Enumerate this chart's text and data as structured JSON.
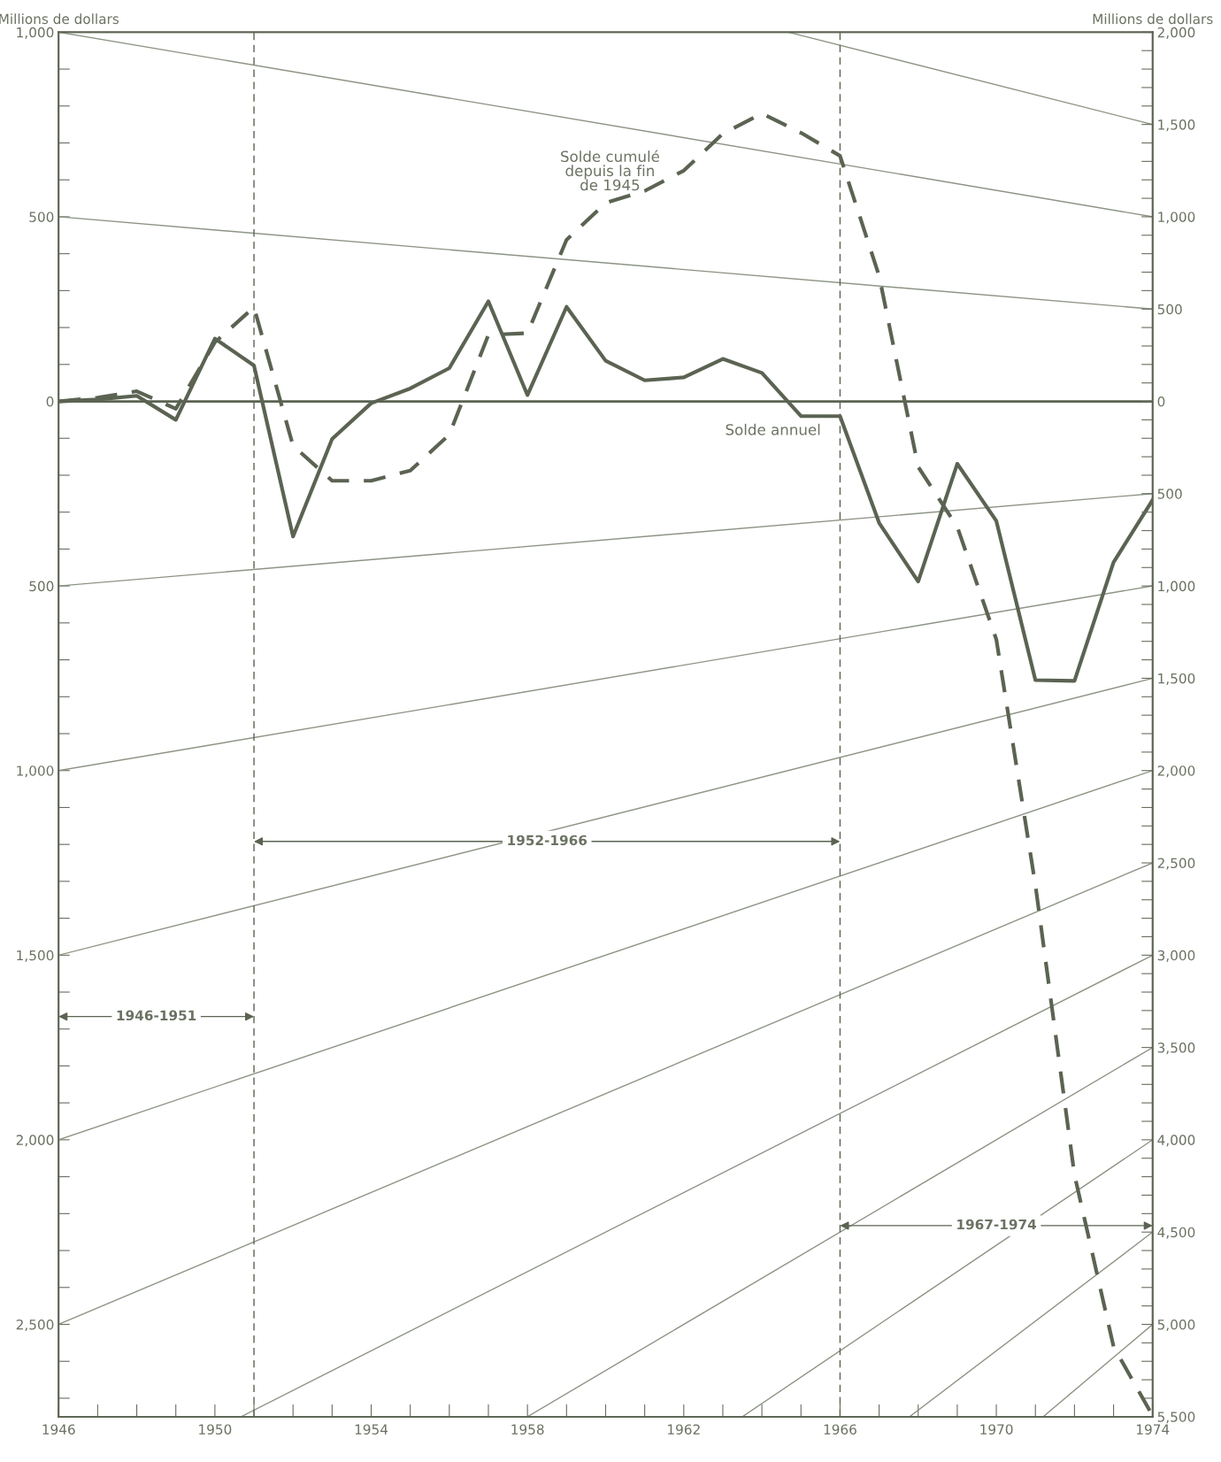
{
  "chart_data": {
    "type": "line",
    "ylabel": "Millions de dollars",
    "y2label": "Millions de dollars",
    "x": [
      1946,
      1947,
      1948,
      1949,
      1950,
      1951,
      1952,
      1953,
      1954,
      1955,
      1956,
      1957,
      1958,
      1959,
      1960,
      1961,
      1962,
      1963,
      1964,
      1965,
      1966,
      1967,
      1968,
      1969,
      1970,
      1971,
      1972,
      1973,
      1974
    ],
    "series": [
      {
        "color": "#8c9484",
        "x": [
          1946,
          1974
        ],
        "values": [
          1000,
          500
        ]
      },
      {
        "color": "#8c9484",
        "x": [
          1964.67,
          1974
        ],
        "values": [
          1000,
          750
        ]
      },
      {
        "color": "#8c9484",
        "x": [
          1946,
          1974
        ],
        "values": [
          500,
          250
        ]
      },
      {
        "color": "#8c9484",
        "x": [
          1946,
          1974
        ],
        "values": [
          -500,
          -250
        ]
      },
      {
        "color": "#8c9484",
        "x": [
          1946,
          1974
        ],
        "values": [
          -1000,
          -500
        ]
      },
      {
        "color": "#8c9484",
        "x": [
          1946,
          1974
        ],
        "values": [
          -1500,
          -750
        ]
      },
      {
        "color": "#8c9484",
        "x": [
          1946,
          1974
        ],
        "values": [
          -2000,
          -1000
        ]
      },
      {
        "color": "#8c9484",
        "x": [
          1946,
          1974
        ],
        "values": [
          -2500,
          -1250
        ]
      },
      {
        "color": "#8c9484",
        "x": [
          1950.67,
          1974
        ],
        "values": [
          -2750,
          -1500
        ]
      },
      {
        "color": "#8c9484",
        "x": [
          1958.0,
          1974
        ],
        "values": [
          -2750,
          -1750
        ]
      },
      {
        "color": "#8c9484",
        "x": [
          1963.5,
          1974
        ],
        "values": [
          -2750,
          -2000
        ]
      },
      {
        "color": "#8c9484",
        "x": [
          1967.78,
          1974
        ],
        "values": [
          -2750,
          -2250
        ]
      },
      {
        "color": "#8c9484",
        "x": [
          1971.2,
          1974
        ],
        "values": [
          -2750,
          -2500
        ]
      },
      {
        "color": "#5b6352",
        "line_style": "solid",
        "values": [
          0,
          5,
          15,
          -50,
          170,
          97,
          -366,
          -102,
          -5,
          35,
          90,
          271,
          17,
          256,
          110,
          57,
          65,
          115,
          77,
          -40,
          -40,
          -329,
          -488,
          -169,
          -324,
          -755,
          -757,
          -436,
          -267
        ]
      },
      {
        "color": "#5b6352",
        "line_style": "dashed",
        "axis": "y2",
        "values": [
          0,
          20,
          55,
          -40,
          320,
          510,
          -240,
          -430,
          -430,
          -375,
          -180,
          360,
          370,
          875,
          1075,
          1140,
          1250,
          1450,
          1560,
          1455,
          1330,
          680,
          -355,
          -680,
          -1290,
          -2620,
          -4190,
          -5120,
          -5495
        ]
      }
    ],
    "xlim": [
      1946,
      1974
    ],
    "xticks": [
      1946,
      {
        "value": 1947,
        "label": null
      },
      {
        "value": 1948,
        "label": null
      },
      {
        "value": 1949,
        "label": null
      },
      1950,
      {
        "value": 1951,
        "label": null
      },
      {
        "value": 1952,
        "label": null
      },
      {
        "value": 1953,
        "label": null
      },
      1954,
      {
        "value": 1955,
        "label": null
      },
      {
        "value": 1956,
        "label": null
      },
      {
        "value": 1957,
        "label": null
      },
      1958,
      {
        "value": 1959,
        "label": null
      },
      {
        "value": 1960,
        "label": null
      },
      {
        "value": 1961,
        "label": null
      },
      1962,
      {
        "value": 1963,
        "label": null
      },
      {
        "value": 1964,
        "label": null
      },
      {
        "value": 1965,
        "label": null
      },
      1966,
      {
        "value": 1967,
        "label": null
      },
      {
        "value": 1968,
        "label": null
      },
      {
        "value": 1969,
        "label": null
      },
      1970,
      {
        "value": 1971,
        "label": null
      },
      {
        "value": 1972,
        "label": null
      },
      {
        "value": 1973,
        "label": null
      },
      1974
    ],
    "ylim": [
      -2750,
      1000
    ],
    "yticks": [
      {
        "value": 1000,
        "label": "1,000"
      },
      {
        "value": 900,
        "label": null
      },
      {
        "value": 800,
        "label": null
      },
      {
        "value": 700,
        "label": null
      },
      {
        "value": 600,
        "label": null
      },
      500,
      {
        "value": 400,
        "label": null
      },
      {
        "value": 300,
        "label": null
      },
      {
        "value": 200,
        "label": null
      },
      {
        "value": 100,
        "label": null
      },
      0,
      {
        "value": -100,
        "label": null
      },
      {
        "value": -200,
        "label": null
      },
      {
        "value": -300,
        "label": null
      },
      {
        "value": -400,
        "label": null
      },
      {
        "value": -500,
        "label": "500"
      },
      {
        "value": -600,
        "label": null
      },
      {
        "value": -700,
        "label": null
      },
      {
        "value": -800,
        "label": null
      },
      {
        "value": -900,
        "label": null
      },
      {
        "value": -1000,
        "label": "1,000"
      },
      {
        "value": -1100,
        "label": null
      },
      {
        "value": -1200,
        "label": null
      },
      {
        "value": -1300,
        "label": null
      },
      {
        "value": -1400,
        "label": null
      },
      {
        "value": -1500,
        "label": "1,500"
      },
      {
        "value": -1600,
        "label": null
      },
      {
        "value": -1700,
        "label": null
      },
      {
        "value": -1800,
        "label": null
      },
      {
        "value": -1900,
        "label": null
      },
      {
        "value": -2000,
        "label": "2,000"
      },
      {
        "value": -2100,
        "label": null
      },
      {
        "value": -2200,
        "label": null
      },
      {
        "value": -2300,
        "label": null
      },
      {
        "value": -2400,
        "label": null
      },
      {
        "value": -2500,
        "label": "2,500"
      },
      {
        "value": -2600,
        "label": null
      },
      {
        "value": -2700,
        "label": null
      }
    ],
    "y2lim": [
      -5500,
      2000
    ],
    "y2ticks": [
      {
        "value": 2000,
        "label": "2,000"
      },
      {
        "value": 1900,
        "label": null
      },
      {
        "value": 1800,
        "label": null
      },
      {
        "value": 1700,
        "label": null
      },
      {
        "value": 1600,
        "label": null
      },
      {
        "value": 1500,
        "label": "1,500"
      },
      {
        "value": 1400,
        "label": null
      },
      {
        "value": 1300,
        "label": null
      },
      {
        "value": 1200,
        "label": null
      },
      {
        "value": 1100,
        "label": null
      },
      {
        "value": 1000,
        "label": "1,000"
      },
      {
        "value": 900,
        "label": null
      },
      {
        "value": 800,
        "label": null
      },
      {
        "value": 700,
        "label": null
      },
      {
        "value": 600,
        "label": null
      },
      500,
      {
        "value": 400,
        "label": null
      },
      {
        "value": 300,
        "label": null
      },
      {
        "value": 200,
        "label": null
      },
      {
        "value": 100,
        "label": null
      },
      0,
      {
        "value": -100,
        "label": null
      },
      {
        "value": -200,
        "label": null
      },
      {
        "value": -300,
        "label": null
      },
      {
        "value": -400,
        "label": null
      },
      {
        "value": -500,
        "label": "500"
      },
      {
        "value": -600,
        "label": null
      },
      {
        "value": -700,
        "label": null
      },
      {
        "value": -800,
        "label": null
      },
      {
        "value": -900,
        "label": null
      },
      {
        "value": -1000,
        "label": "1,000"
      },
      {
        "value": -1100,
        "label": null
      },
      {
        "value": -1200,
        "label": null
      },
      {
        "value": -1300,
        "label": null
      },
      {
        "value": -1400,
        "label": null
      },
      {
        "value": -1500,
        "label": "1,500"
      },
      {
        "value": -1600,
        "label": null
      },
      {
        "value": -1700,
        "label": null
      },
      {
        "value": -1800,
        "label": null
      },
      {
        "value": -1900,
        "label": null
      },
      {
        "value": -2000,
        "label": "2,000"
      },
      {
        "value": -2100,
        "label": null
      },
      {
        "value": -2200,
        "label": null
      },
      {
        "value": -2300,
        "label": null
      },
      {
        "value": -2400,
        "label": null
      },
      {
        "value": -2500,
        "label": "2,500"
      },
      {
        "value": -2600,
        "label": null
      },
      {
        "value": -2700,
        "label": null
      },
      {
        "value": -2800,
        "label": null
      },
      {
        "value": -2900,
        "label": null
      },
      {
        "value": -3000,
        "label": "3,000"
      },
      {
        "value": -3100,
        "label": null
      },
      {
        "value": -3200,
        "label": null
      },
      {
        "value": -3300,
        "label": null
      },
      {
        "value": -3400,
        "label": null
      },
      {
        "value": -3500,
        "label": "3,500"
      },
      {
        "value": -3600,
        "label": null
      },
      {
        "value": -3700,
        "label": null
      },
      {
        "value": -3800,
        "label": null
      },
      {
        "value": -3900,
        "label": null
      },
      {
        "value": -4000,
        "label": "4,000"
      },
      {
        "value": -4100,
        "label": null
      },
      {
        "value": -4200,
        "label": null
      },
      {
        "value": -4300,
        "label": null
      },
      {
        "value": -4400,
        "label": null
      },
      {
        "value": -4500,
        "label": "4,500"
      },
      {
        "value": -4600,
        "label": null
      },
      {
        "value": -4700,
        "label": null
      },
      {
        "value": -4800,
        "label": null
      },
      {
        "value": -4900,
        "label": null
      },
      {
        "value": -5000,
        "label": "5,000"
      },
      {
        "value": -5100,
        "label": null
      },
      {
        "value": -5200,
        "label": null
      },
      {
        "value": -5300,
        "label": null
      },
      {
        "value": -5400,
        "label": null
      },
      {
        "value": -5500,
        "label": "5,500"
      }
    ],
    "ref_lines": [
      {
        "axis": "y",
        "value": 0,
        "color": "#5b6352",
        "line_style": "solid"
      },
      {
        "axis": "x",
        "value": 1951,
        "color": "#5b6352",
        "line_style": "dashed"
      },
      {
        "axis": "x",
        "value": 1966,
        "color": "#5b6352",
        "line_style": "dashed"
      }
    ],
    "annotations": [
      "Solde cumulé\ndepuis la fin\nde 1945",
      "Solde annuel",
      "1946-1951",
      "1952-1966",
      "1967-1974"
    ],
    "grid": false,
    "legend": false,
    "marker": "none"
  }
}
